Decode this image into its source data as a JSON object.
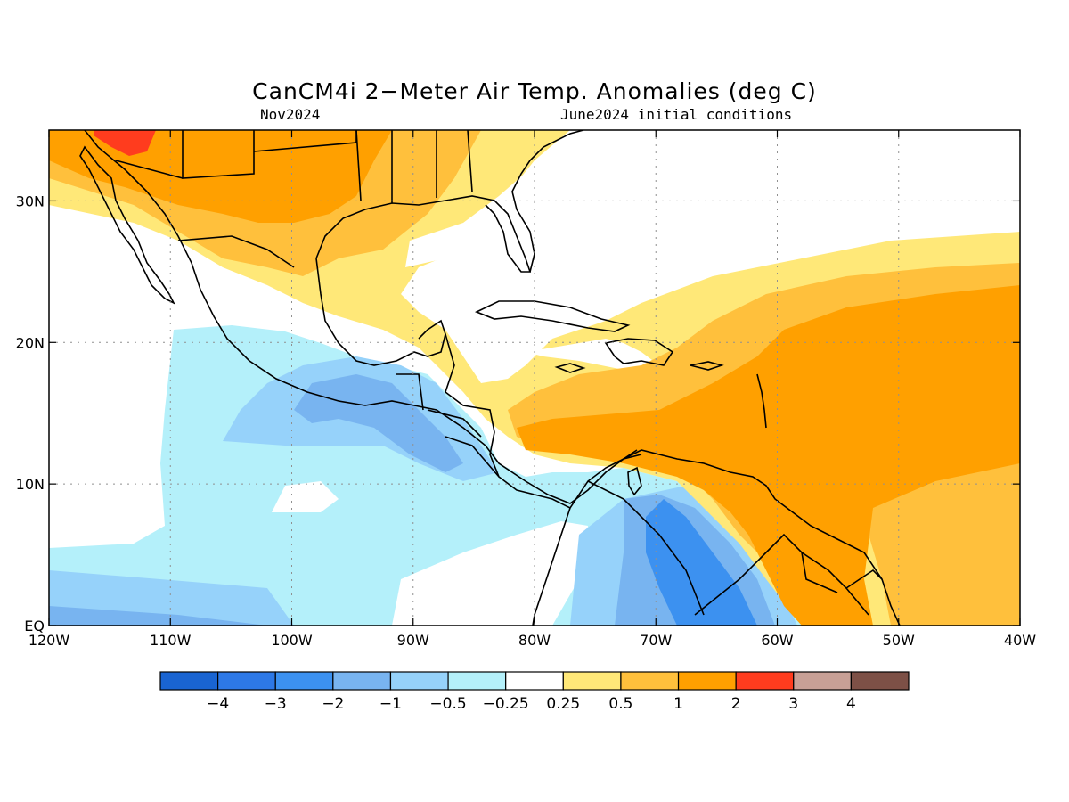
{
  "title": "CanCM4i 2−Meter Air Temp. Anomalies (deg C)",
  "subtitle_left": "Nov2024",
  "subtitle_right": "June2024 initial conditions",
  "map": {
    "lon_range": [
      -120,
      -40
    ],
    "lat_range": [
      0,
      35
    ],
    "x_ticks": [
      {
        "lon": -120,
        "label": "120W"
      },
      {
        "lon": -110,
        "label": "110W"
      },
      {
        "lon": -100,
        "label": "100W"
      },
      {
        "lon": -90,
        "label": "90W"
      },
      {
        "lon": -80,
        "label": "80W"
      },
      {
        "lon": -70,
        "label": "70W"
      },
      {
        "lon": -60,
        "label": "60W"
      },
      {
        "lon": -50,
        "label": "50W"
      },
      {
        "lon": -40,
        "label": "40W"
      }
    ],
    "y_ticks": [
      {
        "lat": 0,
        "label": "EQ"
      },
      {
        "lat": 10,
        "label": "10N"
      },
      {
        "lat": 20,
        "label": "20N"
      },
      {
        "lat": 30,
        "label": "30N"
      }
    ],
    "grid": "dotted"
  },
  "colorbar": {
    "colors": [
      "#1964d2",
      "#2d78e6",
      "#3c91f0",
      "#78b4f0",
      "#96d2fa",
      "#b4f0fa",
      "#ffffff",
      "#ffe878",
      "#ffc03c",
      "#ffa000",
      "#ff3c1e",
      "#c8a096",
      "#7d5046"
    ],
    "labels": [
      "−4",
      "−3",
      "−2",
      "−1",
      "−0.5",
      "−0.25",
      "0.25",
      "0.5",
      "1",
      "2",
      "3",
      "4"
    ]
  },
  "colors": {
    "cool_lightest": "#b4f0fa",
    "cool_light": "#96d2fa",
    "cool_mid": "#78b4f0",
    "cool_strong": "#3c91f0",
    "warm_lightest": "#ffe878",
    "warm_light": "#ffc03c",
    "warm_mid": "#ffa000",
    "warm_strong": "#ff3c1e"
  }
}
